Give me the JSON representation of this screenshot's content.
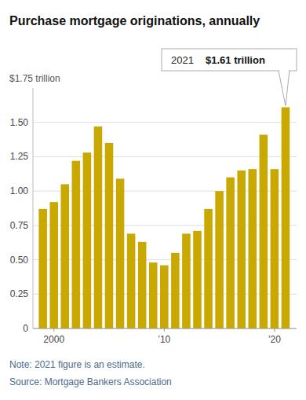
{
  "chart_data": {
    "type": "bar",
    "title": "Purchase mortgage originations, annually",
    "y_label": "$1.75 trillion",
    "x": [
      1999,
      2000,
      2001,
      2002,
      2003,
      2004,
      2005,
      2006,
      2007,
      2008,
      2009,
      2010,
      2011,
      2012,
      2013,
      2014,
      2015,
      2016,
      2017,
      2018,
      2019,
      2020,
      2021
    ],
    "values": [
      0.87,
      0.92,
      1.05,
      1.22,
      1.28,
      1.47,
      1.35,
      1.09,
      0.69,
      0.63,
      0.48,
      0.46,
      0.55,
      0.69,
      0.71,
      0.87,
      1.0,
      1.1,
      1.15,
      1.16,
      1.41,
      1.16,
      1.61
    ],
    "color": "#C9A900",
    "xlim": [
      1998.1,
      2022.0
    ],
    "xticks": [
      {
        "value": 2000,
        "label": "2000"
      },
      {
        "value": 2010,
        "label": "’10"
      },
      {
        "value": 2020,
        "label": "’20"
      }
    ],
    "ylim": [
      0,
      1.75
    ],
    "yticks": [
      0,
      0.25,
      {
        "value": 0.5,
        "label": "0.50"
      },
      0.75,
      {
        "value": 1.0,
        "label": "1.00"
      },
      1.25,
      {
        "value": 1.5,
        "label": "1.50"
      }
    ],
    "grid": true,
    "annotations": [
      {
        "x": 2021,
        "y": 1.61,
        "text": "2021",
        "value_text": "$1.61 trillion"
      }
    ],
    "note": "Note: 2021 figure is an estimate.",
    "source": "Source: Mortgage Bankers Association"
  }
}
